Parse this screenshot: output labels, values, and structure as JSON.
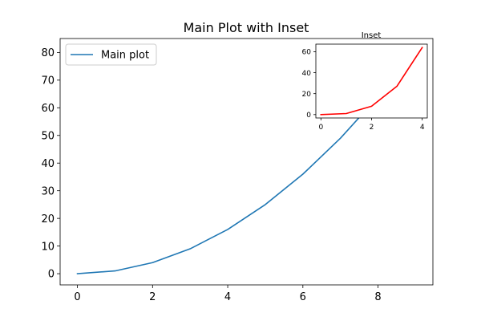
{
  "chart_data": [
    {
      "type": "line",
      "title": "Main Plot with Inset",
      "xlabel": "",
      "ylabel": "",
      "xlim": [
        -0.46,
        9.46
      ],
      "ylim": [
        -4.05,
        85.05
      ],
      "xticks": [
        0,
        2,
        4,
        6,
        8
      ],
      "yticks": [
        0,
        10,
        20,
        30,
        40,
        50,
        60,
        70,
        80
      ],
      "grid": false,
      "legend": {
        "position": "top-left",
        "entries": [
          "Main plot"
        ]
      },
      "series": [
        {
          "name": "Main plot",
          "color": "#1f77b4",
          "x": [
            0,
            1,
            2,
            3,
            4,
            5,
            6,
            7,
            8,
            9
          ],
          "y": [
            0,
            1,
            4,
            9,
            16,
            25,
            36,
            49,
            64,
            81
          ]
        }
      ]
    },
    {
      "type": "line",
      "title": "Inset",
      "xlabel": "",
      "ylabel": "",
      "xlim": [
        -0.2,
        4.2
      ],
      "ylim": [
        -3.2,
        67.2
      ],
      "xticks": [
        0,
        2,
        4
      ],
      "yticks": [
        0,
        20,
        40,
        60
      ],
      "grid": false,
      "series": [
        {
          "color": "#ff0000",
          "x": [
            0,
            1,
            2,
            3,
            4
          ],
          "y": [
            0,
            1,
            8,
            27,
            64
          ]
        }
      ]
    }
  ]
}
